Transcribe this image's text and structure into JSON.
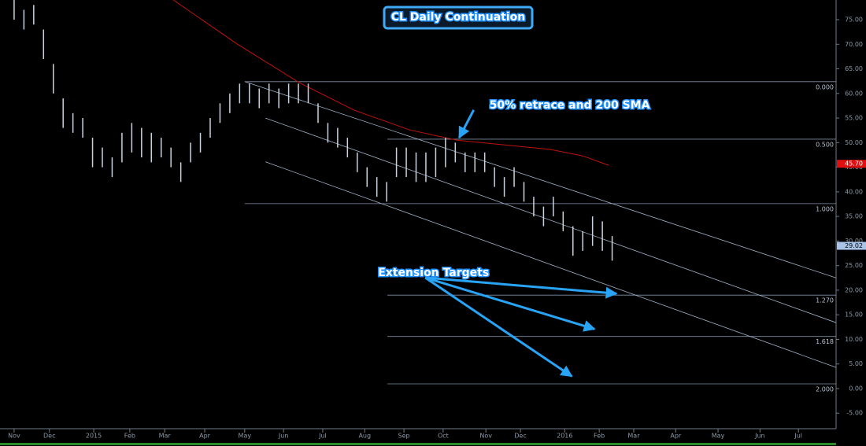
{
  "chart_data": {
    "type": "ohlc",
    "title": "CL Daily Continuation",
    "xlim": [
      -0.36,
      20.96
    ],
    "ylim": [
      -8.16,
      79
    ],
    "xticks": [
      {
        "value": 0,
        "label": "Nov"
      },
      {
        "value": 0.9,
        "label": "Dec"
      },
      {
        "value": 2.03,
        "label": "2015"
      },
      {
        "value": 2.95,
        "label": "Feb"
      },
      {
        "value": 3.84,
        "label": "Mar"
      },
      {
        "value": 4.86,
        "label": "Apr"
      },
      {
        "value": 5.88,
        "label": "May"
      },
      {
        "value": 6.87,
        "label": "Jun"
      },
      {
        "value": 7.87,
        "label": "Jul"
      },
      {
        "value": 8.94,
        "label": "Aug"
      },
      {
        "value": 9.94,
        "label": "Sep"
      },
      {
        "value": 10.94,
        "label": "Oct"
      },
      {
        "value": 12.03,
        "label": "Nov"
      },
      {
        "value": 12.91,
        "label": "Dec"
      },
      {
        "value": 14.04,
        "label": "2016"
      },
      {
        "value": 14.92,
        "label": "Feb"
      },
      {
        "value": 15.8,
        "label": "Mar"
      },
      {
        "value": 16.87,
        "label": "Apr"
      },
      {
        "value": 17.95,
        "label": "May"
      },
      {
        "value": 19.02,
        "label": "Jun"
      },
      {
        "value": 20.0,
        "label": "Jul"
      }
    ],
    "yticks": [
      {
        "value": -5,
        "label": "-5.00"
      },
      {
        "value": 0,
        "label": "0.00"
      },
      {
        "value": 5,
        "label": "5.00"
      },
      {
        "value": 10,
        "label": "10.00"
      },
      {
        "value": 15,
        "label": "15.00"
      },
      {
        "value": 20,
        "label": "20.00"
      },
      {
        "value": 25,
        "label": "25.00"
      },
      {
        "value": 30,
        "label": "30.00"
      },
      {
        "value": 35,
        "label": "35.00"
      },
      {
        "value": 40,
        "label": "40.00"
      },
      {
        "value": 45,
        "label": "45.00"
      },
      {
        "value": 50,
        "label": "50.00"
      },
      {
        "value": 55,
        "label": "55.00"
      },
      {
        "value": 60,
        "label": "60.00"
      },
      {
        "value": 65,
        "label": "65.00"
      },
      {
        "value": 70,
        "label": "70.00"
      },
      {
        "value": 75,
        "label": "75.00"
      }
    ],
    "price": {
      "color": "#c9d3e0",
      "x": [
        0,
        0.25,
        0.5,
        0.75,
        1,
        1.25,
        1.5,
        1.75,
        2,
        2.25,
        2.5,
        2.75,
        3,
        3.25,
        3.5,
        3.75,
        4,
        4.25,
        4.5,
        4.75,
        5,
        5.25,
        5.5,
        5.75,
        6,
        6.25,
        6.5,
        6.75,
        7,
        7.25,
        7.5,
        7.75,
        8,
        8.25,
        8.5,
        8.75,
        9,
        9.25,
        9.5,
        9.75,
        10,
        10.25,
        10.5,
        10.75,
        11,
        11.25,
        11.5,
        11.75,
        12,
        12.25,
        12.5,
        12.75,
        13,
        13.25,
        13.5,
        13.75,
        14,
        14.25,
        14.5,
        14.75,
        15,
        15.25
      ],
      "high": [
        79,
        77,
        78,
        73,
        66,
        59,
        56,
        55,
        51,
        49,
        47,
        52,
        54,
        53,
        52,
        51,
        49,
        46,
        50,
        52,
        55,
        58,
        60,
        62,
        62,
        61,
        62,
        61,
        62,
        62,
        62,
        58,
        54,
        53,
        51,
        48,
        45,
        43,
        42,
        49,
        49,
        48,
        48,
        49,
        51,
        50,
        48,
        48,
        48,
        45,
        43,
        45,
        42,
        39,
        37,
        39,
        36,
        33,
        32,
        35,
        34,
        31
      ],
      "low": [
        75,
        73,
        74,
        67,
        60,
        53,
        52,
        51,
        45,
        45,
        43,
        46,
        48,
        47,
        46,
        47,
        45,
        42,
        46,
        48,
        51,
        54,
        56,
        58,
        58,
        57,
        58,
        57,
        58,
        58,
        58,
        54,
        50,
        49,
        47,
        44,
        41,
        39,
        38,
        43,
        43,
        42,
        42,
        43,
        45,
        46,
        44,
        44,
        44,
        41,
        39,
        41,
        38,
        35,
        33,
        35,
        32,
        27,
        28,
        29,
        28,
        26
      ]
    },
    "sma": {
      "name": "200 SMA",
      "color": "#c0120c",
      "x": [
        4.06,
        5.66,
        7.27,
        8.67,
        10.08,
        11.29,
        12.69,
        13.69,
        14.5,
        15.16
      ],
      "values": [
        79,
        70.2,
        62.2,
        56.6,
        52.6,
        50.5,
        49.4,
        48.6,
        47.3,
        45.4
      ]
    },
    "fib_levels": [
      {
        "value": 62.4,
        "label": "0.000",
        "from": 5.88
      },
      {
        "value": 50.7,
        "label": "0.500",
        "from": 9.52
      },
      {
        "value": 37.6,
        "label": "1.000",
        "from": 5.88
      },
      {
        "value": 19.0,
        "label": "1.270",
        "from": 9.52
      },
      {
        "value": 10.6,
        "label": "1.618",
        "from": 9.52
      },
      {
        "value": 0.96,
        "label": "2.000",
        "from": 9.52
      }
    ],
    "channel": [
      {
        "x": [
          5.88,
          20.96
        ],
        "y": [
          62.4,
          22.5
        ]
      },
      {
        "x": [
          6.41,
          20.96
        ],
        "y": [
          55.0,
          13.4
        ]
      },
      {
        "x": [
          6.41,
          20.96
        ],
        "y": [
          46.1,
          4.3
        ]
      }
    ],
    "price_markers": [
      {
        "value": 45.7,
        "label": "45.70",
        "color": "#e01010"
      },
      {
        "value": 29.02,
        "label": "29.02",
        "color": "#a9c4e8"
      }
    ],
    "annotations": [
      {
        "text": "50% retrace and 200 SMA",
        "x": 12.12,
        "y": 57.6,
        "arrows": [
          [
            11.35,
            51.0
          ]
        ]
      },
      {
        "text": "Extension Targets",
        "x": 9.28,
        "y": 23.5,
        "arrows": [
          [
            15.36,
            19.3
          ],
          [
            14.8,
            12.1
          ],
          [
            14.22,
            2.5
          ]
        ]
      }
    ]
  }
}
